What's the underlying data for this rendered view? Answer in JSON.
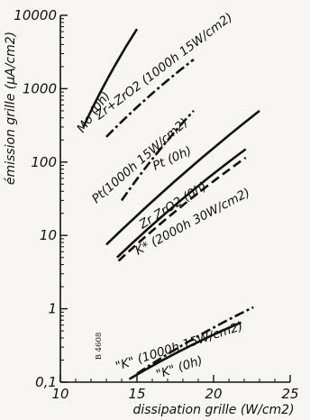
{
  "chart_data": {
    "type": "line",
    "title": "",
    "xlabel": "dissipation grille (W/cm2)",
    "ylabel": "émission grille (µA/cm2)",
    "xlim": [
      10,
      25
    ],
    "ylim": [
      0.1,
      10000
    ],
    "y_scale": "log",
    "grid": false,
    "x_ticks": [
      {
        "value": 10,
        "label": "10"
      },
      {
        "value": 15,
        "label": "15"
      },
      {
        "value": 20,
        "label": "20"
      },
      {
        "value": 25,
        "label": "25"
      }
    ],
    "y_ticks": [
      {
        "value": 10000,
        "label": "10000"
      },
      {
        "value": 1000,
        "label": "1000"
      },
      {
        "value": 100,
        "label": "100"
      },
      {
        "value": 10,
        "label": "10"
      },
      {
        "value": 1,
        "label": "1"
      },
      {
        "value": 0.1,
        "label": "0,1"
      }
    ],
    "reference": "B 4608",
    "series": [
      {
        "id": "mo",
        "name": "Mo (0h)",
        "style": "solid",
        "x": [
          11.5,
          15.0
        ],
        "y": [
          300,
          6500
        ]
      },
      {
        "id": "zr-1000h",
        "name": "Zr+ZrO2 (1000h 15W/cm2)",
        "style": "dashdot",
        "x": [
          13.0,
          18.7
        ],
        "y": [
          220,
          2500
        ]
      },
      {
        "id": "pt-1000h",
        "name": "Pt(1000h 15W/cm2)",
        "style": "dashdot",
        "x": [
          14.0,
          18.7
        ],
        "y": [
          30,
          500
        ]
      },
      {
        "id": "pt-0h",
        "name": "Pt (0h)",
        "style": "solid",
        "x": [
          13.0,
          23.0
        ],
        "y": [
          7.5,
          500
        ]
      },
      {
        "id": "zr-0h",
        "name": "Zr ZrO2 (0h)",
        "style": "solid",
        "x": [
          13.7,
          22.1
        ],
        "y": [
          5,
          150
        ]
      },
      {
        "id": "k-2000h",
        "name": "K* (2000h 30W/cm2)",
        "style": "dashed",
        "x": [
          13.8,
          22.1
        ],
        "y": [
          4.5,
          115
        ]
      },
      {
        "id": "k-1000h",
        "name": "\"K\" (1000h 15W/cm2)",
        "style": "dashdot",
        "x": [
          15.0,
          22.6
        ],
        "y": [
          0.13,
          1.05
        ]
      },
      {
        "id": "k-0h",
        "name": "\"K\" (0h)",
        "style": "solid",
        "x": [
          14.5,
          21.8
        ],
        "y": [
          0.11,
          0.65
        ]
      }
    ]
  }
}
